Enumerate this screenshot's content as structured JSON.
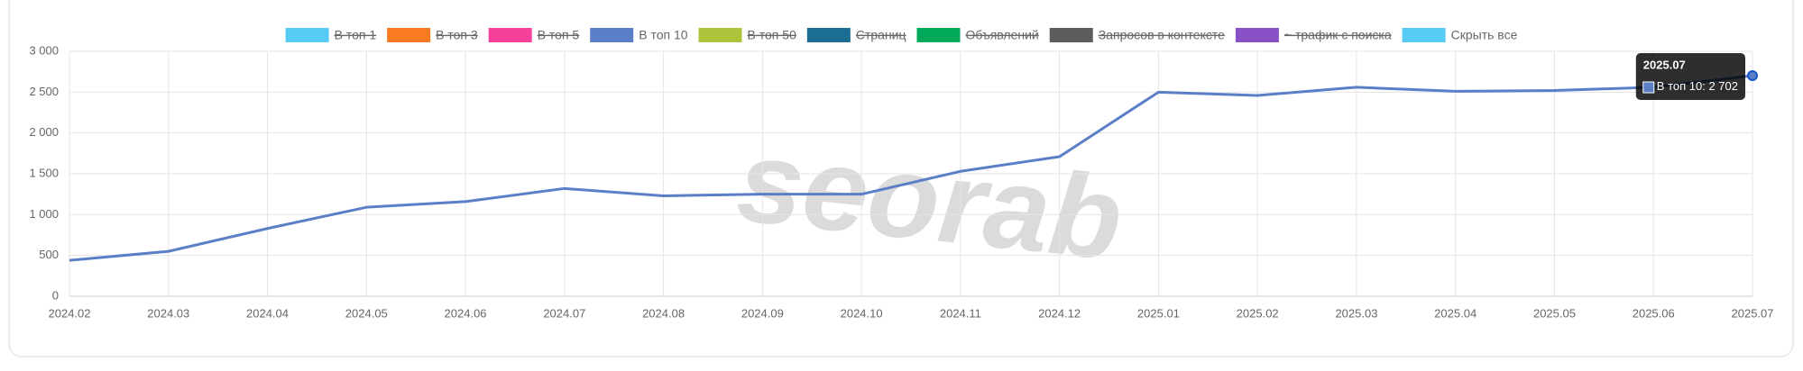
{
  "chart_data": {
    "type": "line",
    "watermark": "seorab",
    "categories": [
      "2024.02",
      "2024.03",
      "2024.04",
      "2024.05",
      "2024.06",
      "2024.07",
      "2024.08",
      "2024.09",
      "2024.10",
      "2024.11",
      "2024.12",
      "2025.01",
      "2025.02",
      "2025.03",
      "2025.04",
      "2025.05",
      "2025.06",
      "2025.07"
    ],
    "series": [
      {
        "name": "В топ 1",
        "color": "#55cbf5",
        "hidden": true
      },
      {
        "name": "В топ 3",
        "color": "#f97a21",
        "hidden": true
      },
      {
        "name": "В топ 5",
        "color": "#f5419a",
        "hidden": true
      },
      {
        "name": "В топ 10",
        "color": "#5b7fc7",
        "hidden": false,
        "values": [
          440,
          550,
          830,
          1090,
          1160,
          1320,
          1230,
          1250,
          1250,
          1530,
          1710,
          2500,
          2460,
          2560,
          2510,
          2520,
          2560,
          2702
        ],
        "value_labels": [
          null,
          null,
          null,
          null,
          null,
          null,
          null,
          null,
          null,
          null,
          null,
          null,
          null,
          null,
          null,
          null,
          null,
          "2 702"
        ]
      },
      {
        "name": "В топ 50",
        "color": "#adc43a",
        "hidden": true
      },
      {
        "name": "Страниц",
        "color": "#1b6e91",
        "hidden": true
      },
      {
        "name": "Объявлений",
        "color": "#00a859",
        "hidden": true
      },
      {
        "name": "Запросов в контексте",
        "color": "#5d5d5d",
        "hidden": true
      },
      {
        "name": "~ трафик с поиска",
        "color": "#8851c8",
        "hidden": true
      }
    ],
    "hide_all": {
      "label": "Скрыть все",
      "color": "#55cbf5"
    },
    "tooltip_index": 17,
    "ylim": [
      0,
      3000
    ],
    "yticks": [
      0,
      500,
      {
        "value": 1000,
        "label": "1 000"
      },
      {
        "value": 1500,
        "label": "1 500"
      },
      {
        "value": 2000,
        "label": "2 000"
      },
      {
        "value": 2500,
        "label": "2 500"
      },
      {
        "value": 3000,
        "label": "3 000"
      }
    ],
    "grid": true
  }
}
